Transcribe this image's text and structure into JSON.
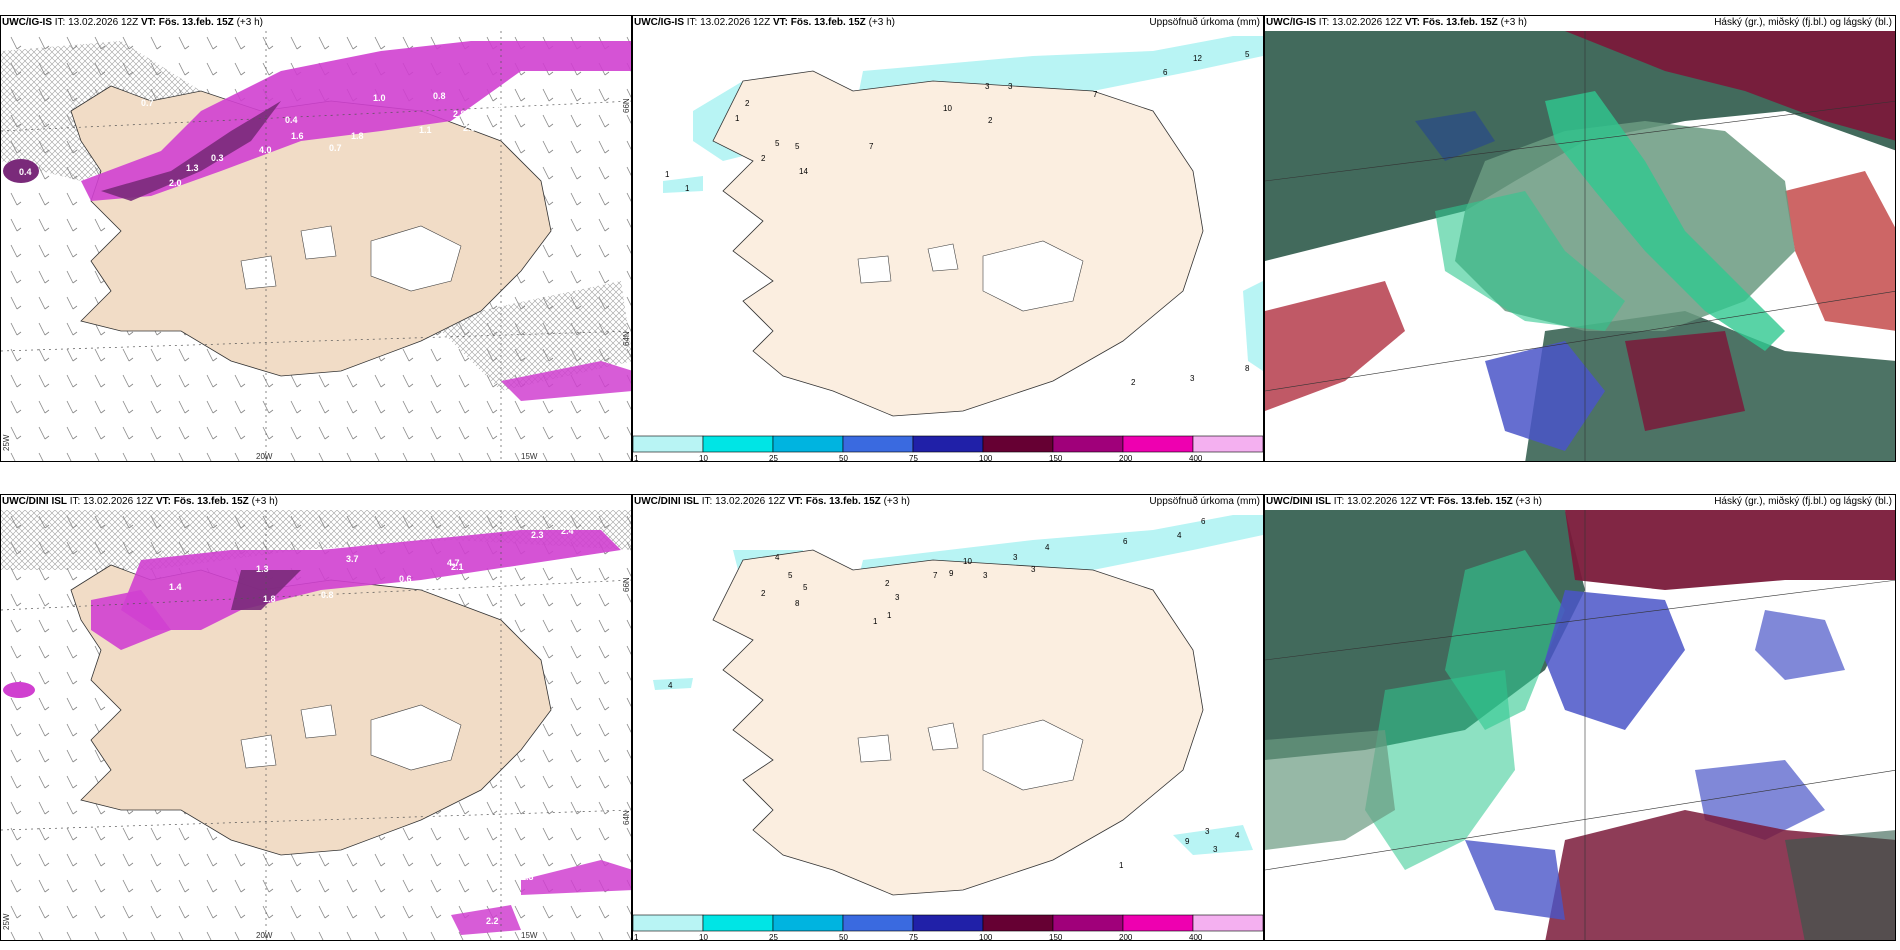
{
  "rows": [
    {
      "model": "UWC/IG-IS",
      "init_label": "IT:",
      "init": "13.02.2026 12Z",
      "valid_label": "VT:",
      "valid": "Fös. 13.feb. 15Z",
      "lead": "(+3 h)"
    },
    {
      "model": "UWC/DINI ISL",
      "init_label": "IT:",
      "init": "13.02.2026 12Z",
      "valid_label": "VT:",
      "valid": "Fös. 13.feb. 15Z",
      "lead": "(+3 h)"
    }
  ],
  "panel_titles": {
    "precip": "Uppsöfnuð úrkoma (mm)",
    "clouds": "Háský (gr.), miðský (fj.bl.) og lágský (bl.)"
  },
  "colorbar": {
    "levels": [
      "1",
      "10",
      "25",
      "50",
      "75",
      "100",
      "150",
      "200",
      "400"
    ],
    "colors": [
      "#b8f4f4",
      "#00e5e5",
      "#00b4e0",
      "#3a6ae0",
      "#2020a8",
      "#660033",
      "#a0007a",
      "#ee00b0",
      "#f4b0f0"
    ]
  },
  "axis_labels": {
    "lon20": "20W",
    "lon15": "15W",
    "lon25": "25W",
    "lat66": "66N",
    "lat64": "64N"
  },
  "top_left_values": [
    "1.8",
    "1.0",
    "0.8",
    "0.7",
    "0.4",
    "0.3",
    "1.6",
    "4.0",
    "2.8",
    "3.3",
    "2.0",
    "1.1",
    "0.7",
    "2.0",
    "1.8",
    "0.4",
    "1.3"
  ],
  "bot_left_values": [
    "2.3",
    "2.4",
    "3.7",
    "2.1",
    "1.3",
    "0.6",
    "1.8",
    "0.8",
    "1.4",
    "4.7",
    "1.3",
    "2.2"
  ],
  "top_precip_values": [
    "12",
    "5",
    "6",
    "7",
    "3",
    "3",
    "2",
    "1",
    "2",
    "5",
    "5",
    "7",
    "14",
    "2",
    "1",
    "1",
    "2",
    "3",
    "8",
    "10"
  ],
  "bot_precip_values": [
    "6",
    "4",
    "6",
    "4",
    "3",
    "3",
    "7",
    "9",
    "10",
    "3",
    "2",
    "3",
    "5",
    "5",
    "4",
    "2",
    "8",
    "1",
    "1",
    "4",
    "9",
    "3",
    "4",
    "3",
    "1"
  ],
  "colors": {
    "land": "#f1dcc6",
    "land_precip": "#fbeee0",
    "purple_dark": "#7a2a7a",
    "purple": "#d040d0",
    "cyan": "#b8f4f4",
    "green": "#30c890",
    "dark_green": "#2e5a4a",
    "maroon": "#7a1a3a",
    "blue": "#4a55c8"
  }
}
